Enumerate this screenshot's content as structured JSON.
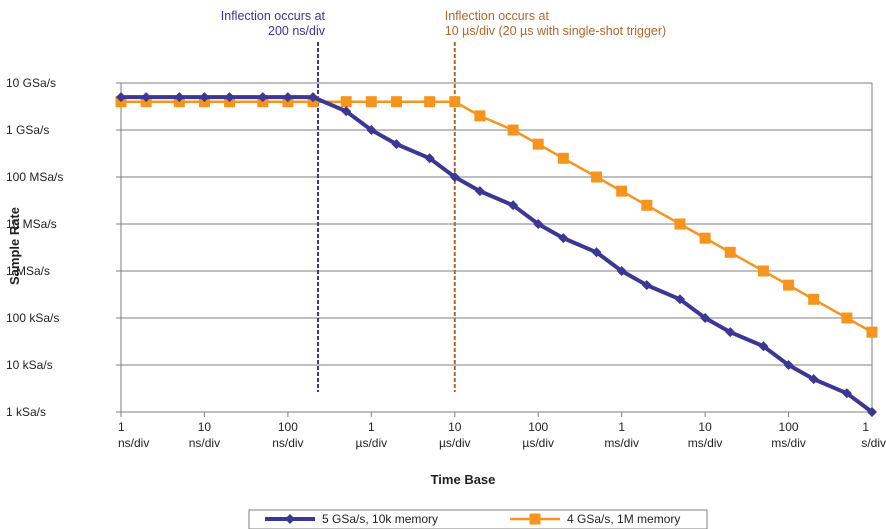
{
  "chart_data": {
    "type": "line",
    "xlabel": "Time Base",
    "ylabel": "Sample Rate",
    "x_scale": "log",
    "y_scale": "log",
    "xlim": [
      1,
      1000000000
    ],
    "ylim": [
      1000,
      10000000000
    ],
    "grid": "horizontal",
    "legend_position": "bottom",
    "y_ticks": [
      {
        "value": 10000000000,
        "label": "10 GSa/s"
      },
      {
        "value": 1000000000,
        "label": "1 GSa/s"
      },
      {
        "value": 100000000,
        "label": "100 MSa/s"
      },
      {
        "value": 10000000,
        "label": "10 MSa/s"
      },
      {
        "value": 1000000,
        "label": "1 MSa/s"
      },
      {
        "value": 100000,
        "label": "100 kSa/s"
      },
      {
        "value": 10000,
        "label": "10 kSa/s"
      },
      {
        "value": 1000,
        "label": "1 kSa/s"
      }
    ],
    "x_ticks": [
      {
        "value": 1,
        "label": [
          "1",
          "ns/div"
        ]
      },
      {
        "value": 10,
        "label": [
          "10",
          "ns/div"
        ]
      },
      {
        "value": 100,
        "label": [
          "100",
          "ns/div"
        ]
      },
      {
        "value": 1000,
        "label": [
          "1",
          "µs/div"
        ]
      },
      {
        "value": 10000,
        "label": [
          "10",
          "µs/div"
        ]
      },
      {
        "value": 100000,
        "label": [
          "100",
          "µs/div"
        ]
      },
      {
        "value": 1000000,
        "label": [
          "1",
          "ms/div"
        ]
      },
      {
        "value": 10000000,
        "label": [
          "10",
          "ms/div"
        ]
      },
      {
        "value": 100000000,
        "label": [
          "100",
          "ms/div"
        ]
      },
      {
        "value": 1000000000,
        "label": [
          "1",
          "s/div"
        ]
      }
    ],
    "x": [
      1,
      2,
      5,
      10,
      20,
      50,
      100,
      200,
      500,
      1000,
      2000,
      5000,
      10000,
      20000,
      50000,
      100000,
      200000,
      500000,
      1000000,
      2000000,
      5000000,
      10000000,
      20000000,
      50000000,
      100000000,
      200000000,
      500000000,
      1000000000
    ],
    "series": [
      {
        "name": "5 GSa/s, 10k memory",
        "color": "#3a3795",
        "marker": "diamond",
        "values": [
          5000000000,
          5000000000,
          5000000000,
          5000000000,
          5000000000,
          5000000000,
          5000000000,
          5000000000,
          2500000000,
          1000000000,
          500000000,
          250000000,
          100000000,
          50000000,
          25000000,
          10000000,
          5000000,
          2500000,
          1000000,
          500000,
          250000,
          100000,
          50000,
          25000,
          10000,
          5000,
          2500,
          1000
        ]
      },
      {
        "name": "4 GSa/s, 1M memory",
        "color": "#f7941d",
        "marker": "square",
        "values": [
          4000000000,
          4000000000,
          4000000000,
          4000000000,
          4000000000,
          4000000000,
          4000000000,
          4000000000,
          4000000000,
          4000000000,
          4000000000,
          4000000000,
          4000000000,
          2000000000,
          1000000000,
          500000000,
          250000000,
          100000000,
          50000000,
          25000000,
          10000000,
          5000000,
          2500000,
          1000000,
          500000,
          250000,
          100000,
          50000
        ]
      }
    ],
    "annotations": [
      {
        "lines": [
          "Inflection occurs at",
          "200 ns/div"
        ],
        "x": 200,
        "color": "#3a3795",
        "align": "end"
      },
      {
        "lines": [
          "Inflection occurs at",
          "10 µs/div (20 µs with single-shot trigger)"
        ],
        "x": 10000,
        "color": "#b5652a",
        "align": "start"
      }
    ]
  }
}
